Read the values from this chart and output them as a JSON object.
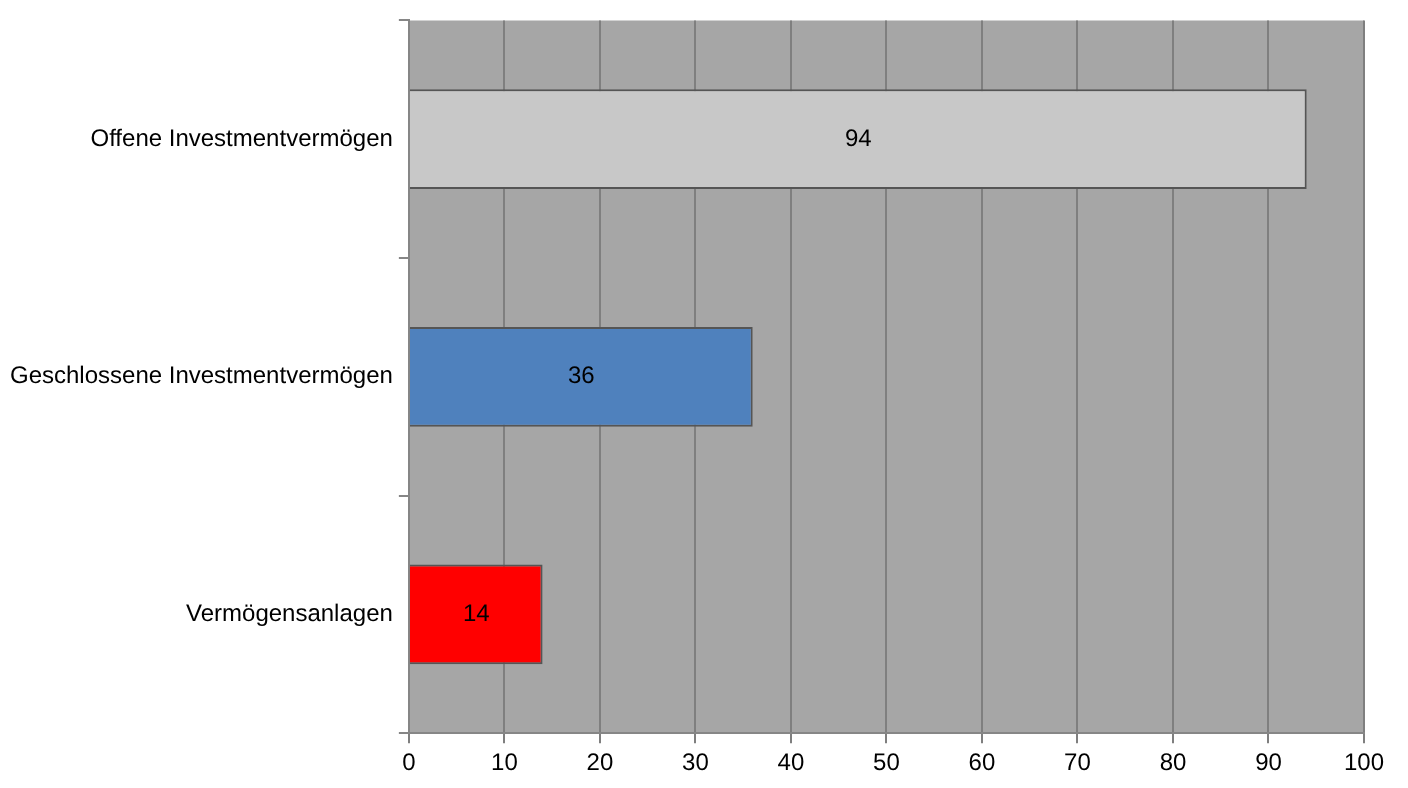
{
  "chart_data": {
    "type": "bar",
    "orientation": "horizontal",
    "categories": [
      "Offene Investmentvermögen",
      "Geschlossene Investmentvermögen",
      "Vermögensanlagen"
    ],
    "values": [
      94,
      36,
      14
    ],
    "colors": [
      "#c8c8c8",
      "#4f81bd",
      "#ff0000"
    ],
    "xlim": [
      0,
      100
    ],
    "xticks": [
      0,
      10,
      20,
      30,
      40,
      50,
      60,
      70,
      80,
      90,
      100
    ],
    "grid": "x",
    "legend": false,
    "data_labels": true
  }
}
